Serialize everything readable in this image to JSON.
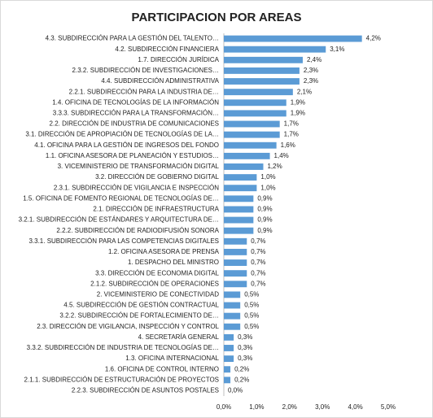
{
  "chart_data": {
    "type": "bar",
    "orientation": "horizontal",
    "title": "PARTICIPACION POR AREAS",
    "categories": [
      "4.3. SUBDIRECCIÓN PARA LA GESTIÓN DEL TALENTO…",
      "4.2. SUBDIRECCIÓN FINANCIERA",
      "1.7. DIRECCIÓN JURÍDICA",
      "2.3.2. SUBDIRECCIÓN DE INVESTIGACIONES…",
      "4.4. SUBDIRECCIÓN ADMINISTRATIVA",
      "2.2.1. SUBDIRECCIÓN PARA LA INDUSTRIA DE…",
      "1.4. OFICINA DE TECNOLOGÍAS DE LA INFORMACIÓN",
      "3.3.3. SUBDIRECCIÓN PARA LA TRANSFORMACIÓN…",
      "2.2. DIRECCIÓN DE INDUSTRIA DE COMUNICACIONES",
      "3.1. DIRECCIÓN DE APROPIACIÓN DE TECNOLOGÍAS DE LA…",
      "4.1. OFICINA PARA LA GESTIÓN DE INGRESOS DEL FONDO",
      "1.1. OFICINA ASESORA DE PLANEACIÓN Y ESTUDIOS…",
      "3. VICEMINISTERIO DE TRANSFORMACIÓN DIGITAL",
      "3.2. DIRECCIÓN DE GOBIERNO DIGITAL",
      "2.3.1. SUBDIRECCIÓN DE VIGILANCIA E INSPECCIÓN",
      "1.5. OFICINA DE FOMENTO REGIONAL DE TECNOLOGÍAS DE…",
      "2.1. DIRECCIÓN DE INFRAESTRUCTURA",
      "3.2.1. SUBDIRECCIÓN DE ESTÁNDARES Y ARQUITECTURA DE…",
      "2.2.2. SUBDIRECCIÓN DE RADIODIFUSIÓN SONORA",
      "3.3.1. SUBDIRECCIÓN PARA LAS COMPETENCIAS DIGITALES",
      "1.2. OFICINA ASESORA DE PRENSA",
      "1. DESPACHO DEL MINISTRO",
      "3.3. DIRECCIÓN DE ECONOMIA DIGITAL",
      "2.1.2. SUBDIRECCIÓN DE OPERACIONES",
      "2. VICEMINISTERIO DE CONECTIVIDAD",
      "4.5. SUBDIRECCIÓN DE GESTIÓN CONTRACTUAL",
      "3.2.2. SUBDIRECCIÓN DE FORTALECIMIENTO DE…",
      "2.3. DIRECCIÓN DE VIGILANCIA, INSPECCIÓN Y CONTROL",
      "4. SECRETARÍA GENERAL",
      "3.3.2. SUBDIRECCIÓN DE INDUSTRIA DE TECNOLOGÍAS DE…",
      "1.3. OFICINA INTERNACIONAL",
      "1.6. OFICINA DE CONTROL INTERNO",
      "2.1.1. SUBDIRECCIÓN DE ESTRUCTURACIÓN DE PROYECTOS",
      "2.2.3. SUBDIRECCIÓN DE ASUNTOS POSTALES"
    ],
    "values": [
      4.2,
      3.1,
      2.4,
      2.3,
      2.3,
      2.1,
      1.9,
      1.9,
      1.7,
      1.7,
      1.6,
      1.4,
      1.2,
      1.0,
      1.0,
      0.9,
      0.9,
      0.9,
      0.9,
      0.7,
      0.7,
      0.7,
      0.7,
      0.7,
      0.5,
      0.5,
      0.5,
      0.5,
      0.3,
      0.3,
      0.3,
      0.2,
      0.2,
      0.0
    ],
    "value_labels": [
      "4,2%",
      "3,1%",
      "2,4%",
      "2,3%",
      "2,3%",
      "2,1%",
      "1,9%",
      "1,9%",
      "1,7%",
      "1,7%",
      "1,6%",
      "1,4%",
      "1,2%",
      "1,0%",
      "1,0%",
      "0,9%",
      "0,9%",
      "0,9%",
      "0,9%",
      "0,7%",
      "0,7%",
      "0,7%",
      "0,7%",
      "0,7%",
      "0,5%",
      "0,5%",
      "0,5%",
      "0,5%",
      "0,3%",
      "0,3%",
      "0,3%",
      "0,2%",
      "0,2%",
      "0,0%"
    ],
    "color": "#5b9bd5",
    "xlim": [
      0,
      5
    ],
    "xticks": [
      {
        "value": 0,
        "label": "0,0%"
      },
      {
        "value": 1,
        "label": "1,0%"
      },
      {
        "value": 2,
        "label": "2,0%"
      },
      {
        "value": 3,
        "label": "3,0%"
      },
      {
        "value": 4,
        "label": "4,0%"
      },
      {
        "value": 5,
        "label": "5,0%"
      }
    ],
    "grid": false
  }
}
